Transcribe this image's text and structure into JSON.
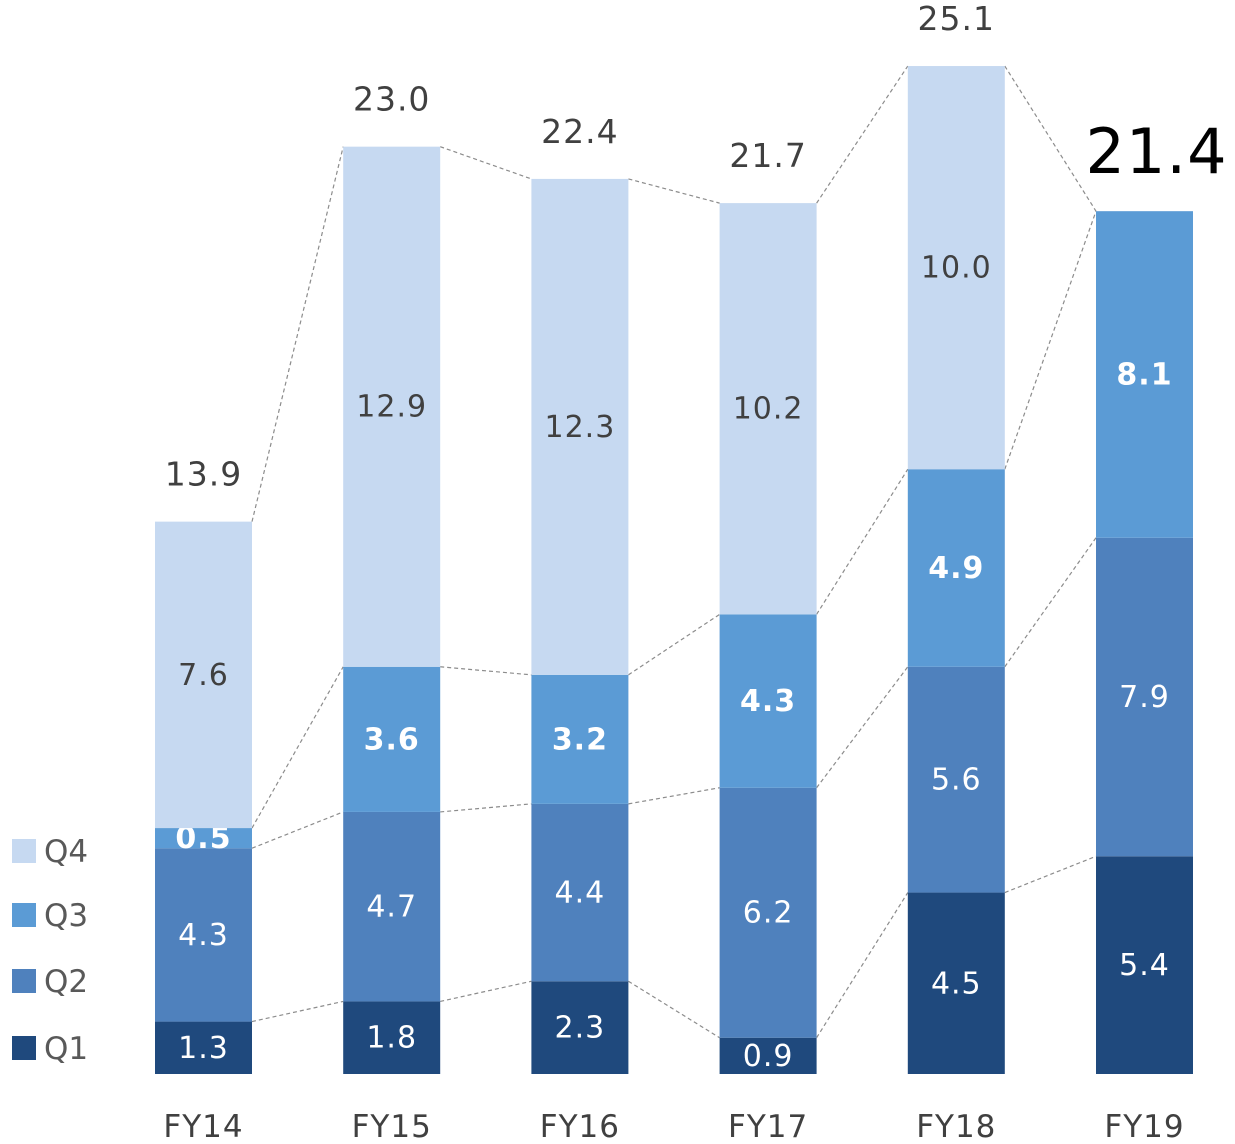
{
  "chart_data": {
    "type": "bar",
    "stacked": true,
    "categories": [
      "FY14",
      "FY15",
      "FY16",
      "FY17",
      "FY18",
      "FY19"
    ],
    "series": [
      {
        "name": "Q1",
        "color": "#1f497d",
        "values": [
          1.3,
          1.8,
          2.3,
          0.9,
          4.5,
          5.4
        ],
        "labels": [
          "1.3",
          "1.8",
          "2.3",
          "0.9",
          "4.5",
          "5.4"
        ]
      },
      {
        "name": "Q2",
        "color": "#4f81bd",
        "values": [
          4.3,
          4.7,
          4.4,
          6.2,
          5.6,
          7.9
        ],
        "labels": [
          "4.3",
          "4.7",
          "4.4",
          "6.2",
          "5.6",
          "7.9"
        ]
      },
      {
        "name": "Q3",
        "color": "#5b9bd5",
        "values": [
          0.5,
          3.6,
          3.2,
          4.3,
          4.9,
          8.1
        ],
        "labels": [
          "0.5",
          "3.6",
          "3.2",
          "4.3",
          "4.9",
          "8.1"
        ]
      },
      {
        "name": "Q4",
        "color": "#c6d9f1",
        "values": [
          7.6,
          12.9,
          12.3,
          10.2,
          10.0,
          null
        ],
        "labels": [
          "7.6",
          "12.9",
          "12.3",
          "10.2",
          "10.0",
          ""
        ]
      }
    ],
    "totals": [
      "13.9",
      "23.0",
      "22.4",
      "21.7",
      "25.1",
      "21.4"
    ],
    "ylim": [
      0,
      25.1
    ],
    "grid": false,
    "legend": "left",
    "legend_order": [
      "Q4",
      "Q3",
      "Q2",
      "Q1"
    ],
    "connector_lines": "dashed",
    "title": "",
    "xlabel": "",
    "ylabel": ""
  }
}
